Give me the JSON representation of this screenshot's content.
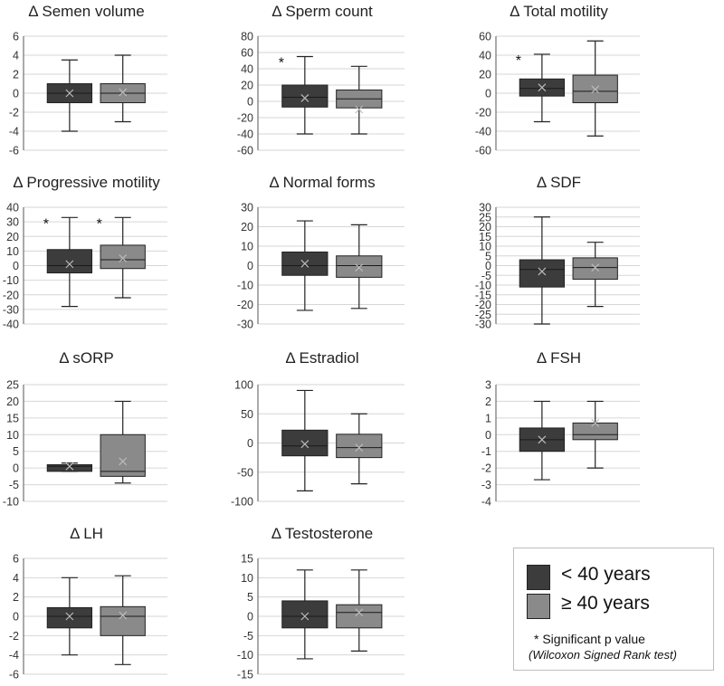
{
  "chart_data": [
    {
      "type": "box",
      "title": "Δ Semen volume",
      "yticks": [
        6,
        4,
        2,
        0,
        -2,
        -4,
        -6
      ],
      "ylim": [
        -6,
        6
      ],
      "boxes": [
        {
          "group": "< 40 years",
          "min": -4,
          "q1": -1,
          "median": 0,
          "q3": 1,
          "max": 3.5,
          "mean": 0
        },
        {
          "group": "≥ 40 years",
          "min": -3,
          "q1": -1,
          "median": 0,
          "q3": 1,
          "max": 4,
          "mean": 0.1
        }
      ],
      "annotations": []
    },
    {
      "type": "box",
      "title": "Δ Sperm count",
      "yticks": [
        80,
        60,
        40,
        20,
        0,
        -20,
        -40,
        -60
      ],
      "ylim": [
        -60,
        80
      ],
      "boxes": [
        {
          "group": "< 40 years",
          "min": -40,
          "q1": -7,
          "median": 5,
          "q3": 20,
          "max": 55,
          "mean": 4
        },
        {
          "group": "≥ 40 years",
          "min": -40,
          "q1": -8,
          "median": 3,
          "q3": 14,
          "max": 43,
          "mean": -10
        }
      ],
      "annotations": [
        "*",
        ""
      ]
    },
    {
      "type": "box",
      "title": "Δ Total motility",
      "yticks": [
        60,
        40,
        20,
        0,
        -20,
        -40,
        -60
      ],
      "ylim": [
        -60,
        60
      ],
      "boxes": [
        {
          "group": "< 40 years",
          "min": -30,
          "q1": -3,
          "median": 5,
          "q3": 15,
          "max": 41,
          "mean": 6
        },
        {
          "group": "≥ 40 years",
          "min": -45,
          "q1": -10,
          "median": 2,
          "q3": 19,
          "max": 55,
          "mean": 4
        }
      ],
      "annotations": [
        "*",
        ""
      ]
    },
    {
      "type": "box",
      "title": "Δ Progressive motility",
      "yticks": [
        40,
        30,
        20,
        10,
        0,
        -10,
        -20,
        -30,
        -40
      ],
      "ylim": [
        -40,
        40
      ],
      "boxes": [
        {
          "group": "< 40 years",
          "min": -28,
          "q1": -5,
          "median": 0,
          "q3": 11,
          "max": 33,
          "mean": 1
        },
        {
          "group": "≥ 40 years",
          "min": -22,
          "q1": -2,
          "median": 4,
          "q3": 14,
          "max": 33,
          "mean": 5
        }
      ],
      "annotations": [
        "*",
        "*"
      ]
    },
    {
      "type": "box",
      "title": "Δ Normal forms",
      "yticks": [
        30,
        20,
        10,
        0,
        -10,
        -20,
        -30
      ],
      "ylim": [
        -30,
        30
      ],
      "boxes": [
        {
          "group": "< 40 years",
          "min": -23,
          "q1": -5,
          "median": 0,
          "q3": 7,
          "max": 23,
          "mean": 1
        },
        {
          "group": "≥ 40 years",
          "min": -22,
          "q1": -6,
          "median": 0,
          "q3": 5,
          "max": 21,
          "mean": -1
        }
      ],
      "annotations": []
    },
    {
      "type": "box",
      "title": "Δ SDF",
      "yticks": [
        30,
        25,
        20,
        15,
        10,
        5,
        0,
        -5,
        -10,
        -15,
        -20,
        -25,
        -30
      ],
      "ylim": [
        -30,
        30
      ],
      "boxes": [
        {
          "group": "< 40 years",
          "min": -30,
          "q1": -11,
          "median": -2,
          "q3": 3,
          "max": 25,
          "mean": -3
        },
        {
          "group": "≥ 40 years",
          "min": -21,
          "q1": -7,
          "median": -1,
          "q3": 4,
          "max": 12,
          "mean": -1
        }
      ],
      "annotations": []
    },
    {
      "type": "box",
      "title": "Δ sORP",
      "yticks": [
        25,
        20,
        15,
        10,
        5,
        0,
        -5,
        -10
      ],
      "ylim": [
        -10,
        25
      ],
      "boxes": [
        {
          "group": "< 40 years",
          "min": -1,
          "q1": -1,
          "median": 0.5,
          "q3": 1,
          "max": 1.5,
          "mean": 0.5
        },
        {
          "group": "≥ 40 years",
          "min": -4.5,
          "q1": -2.5,
          "median": -1,
          "q3": 10,
          "max": 20,
          "mean": 2
        }
      ],
      "annotations": []
    },
    {
      "type": "box",
      "title": "Δ Estradiol",
      "yticks": [
        100,
        50,
        0,
        -50,
        -100
      ],
      "ylim": [
        -100,
        100
      ],
      "boxes": [
        {
          "group": "< 40 years",
          "min": -82,
          "q1": -22,
          "median": -5,
          "q3": 22,
          "max": 90,
          "mean": -2
        },
        {
          "group": "≥ 40 years",
          "min": -70,
          "q1": -25,
          "median": -8,
          "q3": 15,
          "max": 50,
          "mean": -8
        }
      ],
      "annotations": []
    },
    {
      "type": "box",
      "title": "Δ FSH",
      "yticks": [
        3,
        2,
        1,
        0,
        -1,
        -2,
        -3,
        -4
      ],
      "ylim": [
        -4,
        3
      ],
      "boxes": [
        {
          "group": "< 40 years",
          "min": -2.7,
          "q1": -1,
          "median": -0.3,
          "q3": 0.4,
          "max": 2,
          "mean": -0.3
        },
        {
          "group": "≥ 40 years",
          "min": -2,
          "q1": -0.3,
          "median": 0,
          "q3": 0.7,
          "max": 2,
          "mean": 0.7
        }
      ],
      "annotations": []
    },
    {
      "type": "box",
      "title": "Δ LH",
      "yticks": [
        6,
        4,
        2,
        0,
        -2,
        -4,
        -6
      ],
      "ylim": [
        -6,
        6
      ],
      "boxes": [
        {
          "group": "< 40 years",
          "min": -4,
          "q1": -1.2,
          "median": 0,
          "q3": 0.9,
          "max": 4,
          "mean": 0
        },
        {
          "group": "≥ 40 years",
          "min": -5,
          "q1": -2,
          "median": 0,
          "q3": 1,
          "max": 4.2,
          "mean": 0.1
        }
      ],
      "annotations": []
    },
    {
      "type": "box",
      "title": "Δ Testosterone",
      "yticks": [
        15,
        10,
        5,
        0,
        -5,
        -10,
        -15
      ],
      "ylim": [
        -15,
        15
      ],
      "boxes": [
        {
          "group": "< 40 years",
          "min": -11,
          "q1": -3,
          "median": 0,
          "q3": 4,
          "max": 12,
          "mean": 0
        },
        {
          "group": "≥ 40 years",
          "min": -9,
          "q1": -3,
          "median": 1,
          "q3": 3,
          "max": 12,
          "mean": 1
        }
      ],
      "annotations": []
    }
  ],
  "legend": {
    "items": [
      {
        "label": "< 40 years",
        "color": "#3c3c3c"
      },
      {
        "label": "≥ 40 years",
        "color": "#8a8a8a"
      }
    ],
    "note": "* Significant p value",
    "test": "(Wilcoxon Signed Rank test)"
  },
  "colors": {
    "group1": "#3c3c3c",
    "group2": "#8a8a8a",
    "grid": "#d6d6d6",
    "axis": "#555555"
  }
}
